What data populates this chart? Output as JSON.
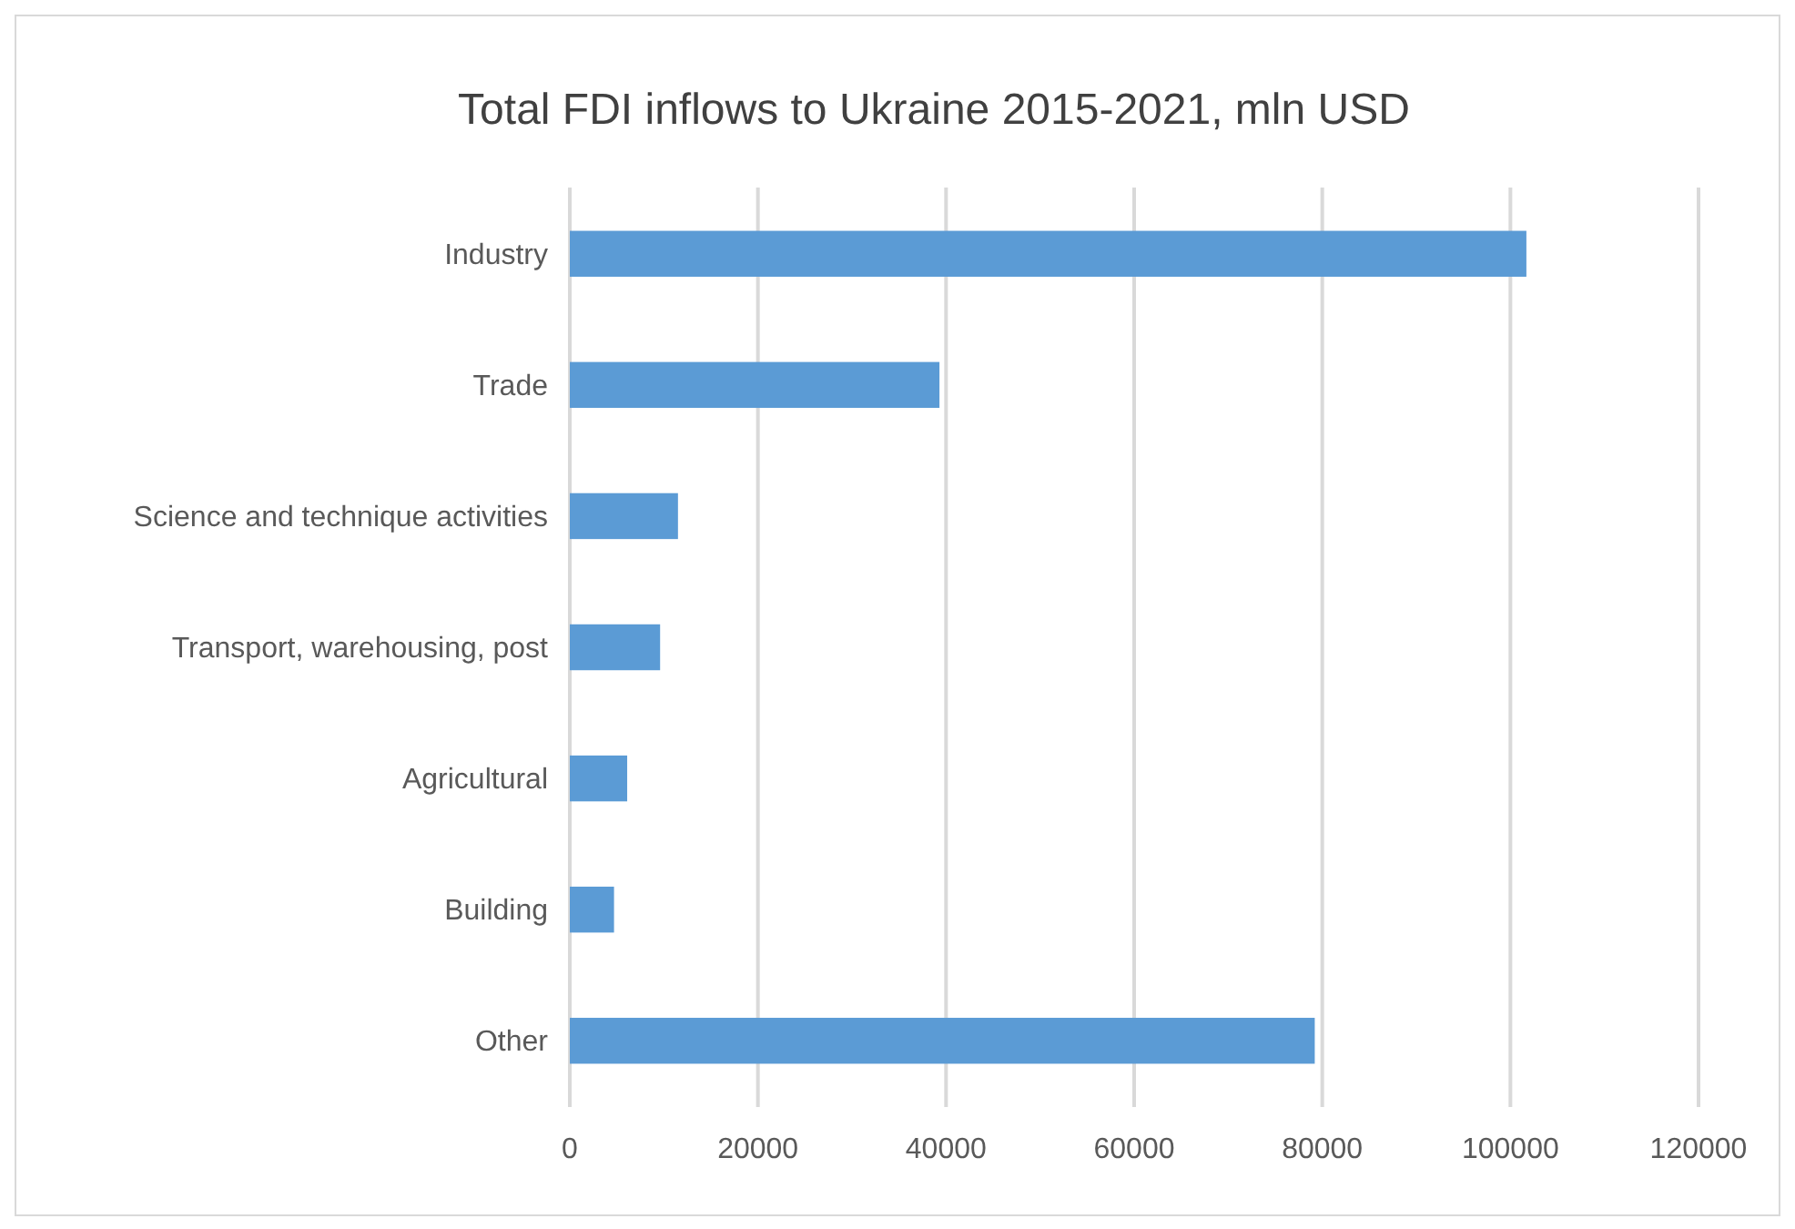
{
  "chart_data": {
    "type": "bar",
    "orientation": "horizontal",
    "title": "Total FDI inflows to Ukraine 2015-2021, mln USD",
    "categories": [
      "Industry",
      "Trade",
      "Science and technique activities",
      "Transport, warehousing, post",
      "Agricultural ",
      "Building",
      "Other"
    ],
    "values": [
      101700,
      39300,
      11500,
      9600,
      6100,
      4700,
      79200
    ],
    "color": "#5b9bd5",
    "xlim": [
      0,
      120000
    ],
    "xticks": [
      0,
      20000,
      40000,
      60000,
      80000,
      100000,
      120000
    ],
    "grid": "x"
  }
}
